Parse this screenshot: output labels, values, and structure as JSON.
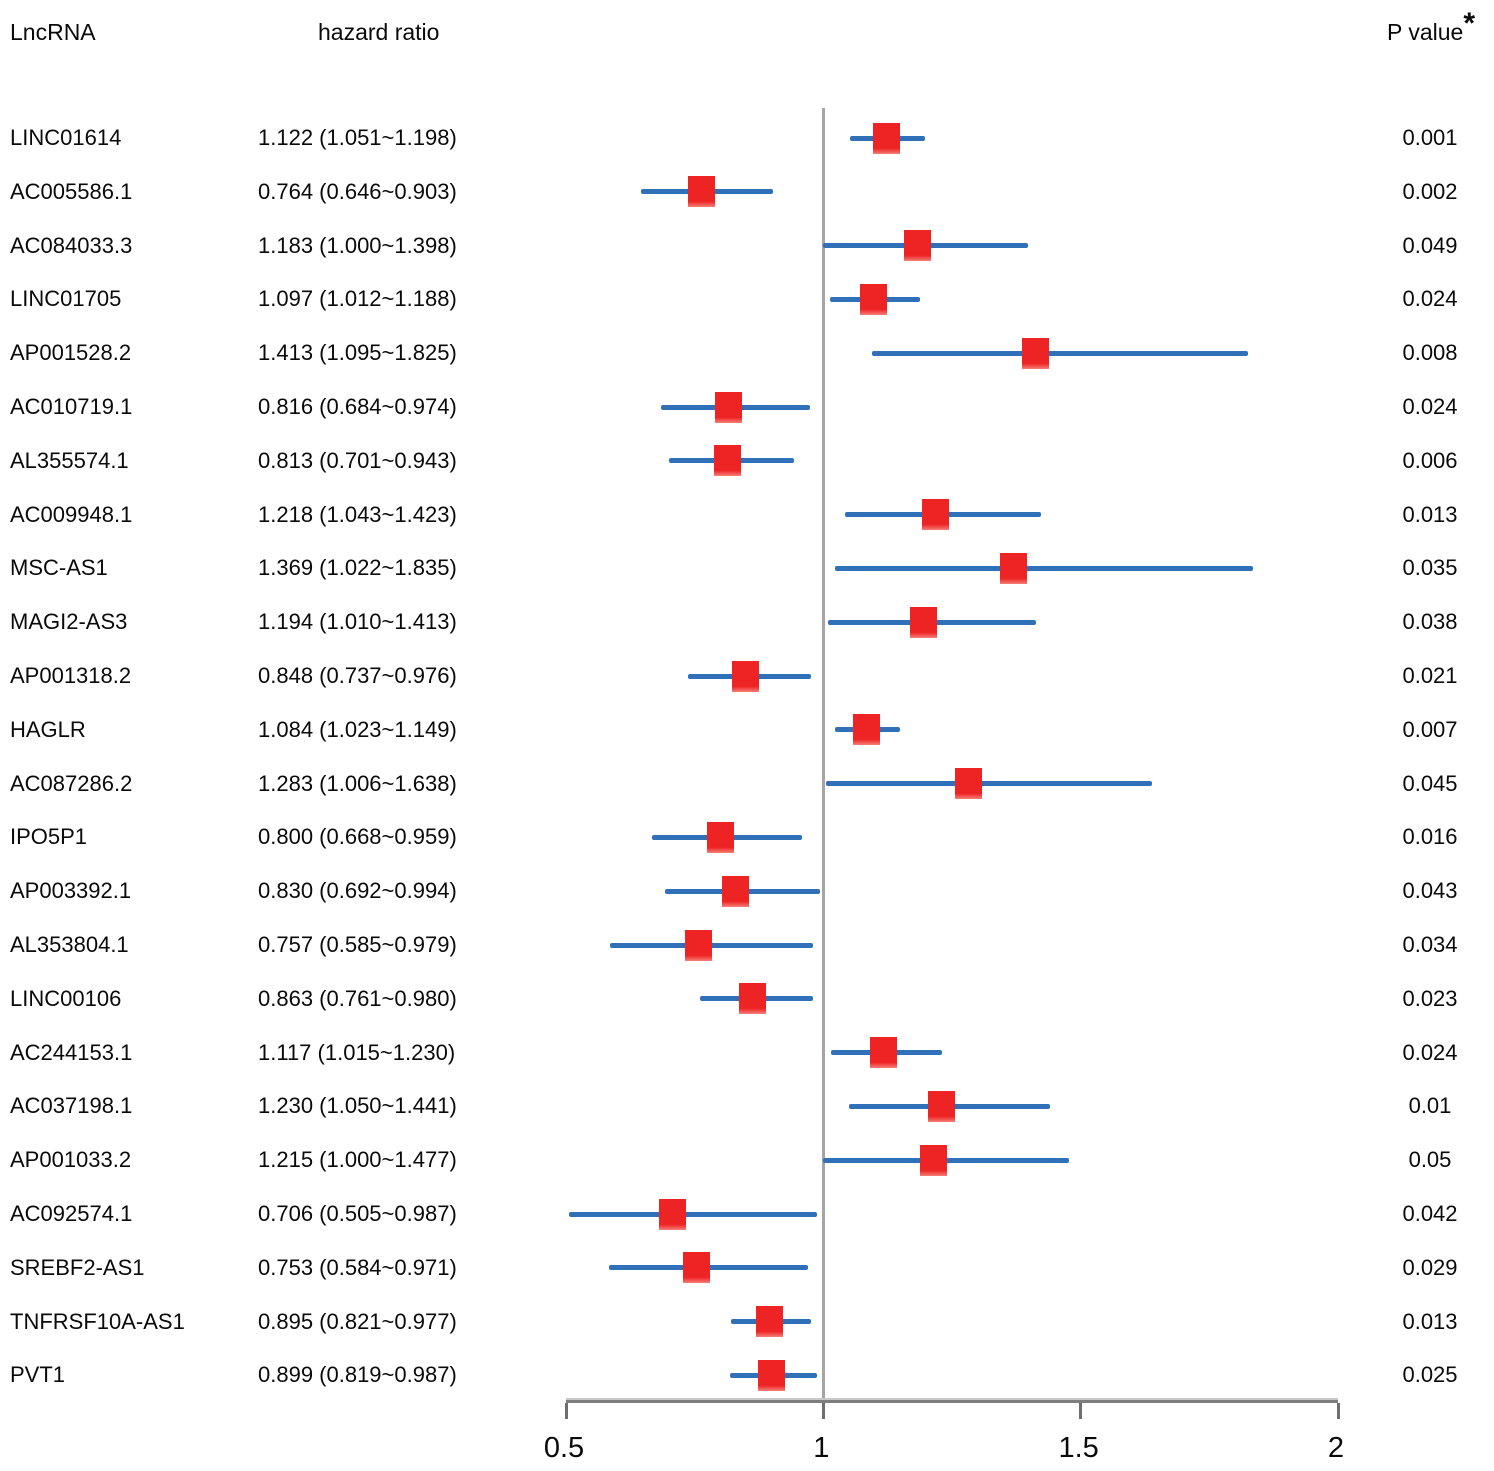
{
  "header": {
    "lncrna": "LncRNA",
    "hazard_ratio": "hazard ratio",
    "p_value": "P value",
    "p_superscript": "*"
  },
  "colors": {
    "marker_red": "#ee2323",
    "marker_red_light": "#f58079",
    "ci_blue": "#3070b8",
    "ref_line_gray": "#a5a5a5",
    "axis_gray_light": "#c9c9c9",
    "axis_gray_dark": "#7e7e7e",
    "tick_gray": "#6f6f6f",
    "text_black": "#0a0a0a"
  },
  "chart_data": {
    "type": "scatter",
    "subtype": "forest-plot",
    "columns": [
      "LncRNA",
      "hazard ratio",
      "P value"
    ],
    "x_axis": {
      "range": [
        0.5,
        2
      ],
      "ticks": [
        0.5,
        1,
        1.5,
        2
      ],
      "tick_labels": [
        "0.5",
        "1",
        "1.5",
        "2"
      ],
      "reference_line": 1,
      "grid": false
    },
    "rows": [
      {
        "lncrna": "LINC01614",
        "hr": 1.122,
        "ci_low": 1.051,
        "ci_high": 1.198,
        "hr_text": "1.122 (1.051~1.198)",
        "p_value": "0.001"
      },
      {
        "lncrna": "AC005586.1",
        "hr": 0.764,
        "ci_low": 0.646,
        "ci_high": 0.903,
        "hr_text": "0.764 (0.646~0.903)",
        "p_value": "0.002"
      },
      {
        "lncrna": "AC084033.3",
        "hr": 1.183,
        "ci_low": 1.0,
        "ci_high": 1.398,
        "hr_text": "1.183 (1.000~1.398)",
        "p_value": "0.049"
      },
      {
        "lncrna": "LINC01705",
        "hr": 1.097,
        "ci_low": 1.012,
        "ci_high": 1.188,
        "hr_text": "1.097 (1.012~1.188)",
        "p_value": "0.024"
      },
      {
        "lncrna": "AP001528.2",
        "hr": 1.413,
        "ci_low": 1.095,
        "ci_high": 1.825,
        "hr_text": "1.413 (1.095~1.825)",
        "p_value": "0.008"
      },
      {
        "lncrna": "AC010719.1",
        "hr": 0.816,
        "ci_low": 0.684,
        "ci_high": 0.974,
        "hr_text": "0.816 (0.684~0.974)",
        "p_value": "0.024"
      },
      {
        "lncrna": "AL355574.1",
        "hr": 0.813,
        "ci_low": 0.701,
        "ci_high": 0.943,
        "hr_text": "0.813 (0.701~0.943)",
        "p_value": "0.006"
      },
      {
        "lncrna": "AC009948.1",
        "hr": 1.218,
        "ci_low": 1.043,
        "ci_high": 1.423,
        "hr_text": "1.218 (1.043~1.423)",
        "p_value": "0.013"
      },
      {
        "lncrna": "MSC-AS1",
        "hr": 1.369,
        "ci_low": 1.022,
        "ci_high": 1.835,
        "hr_text": "1.369 (1.022~1.835)",
        "p_value": "0.035"
      },
      {
        "lncrna": "MAGI2-AS3",
        "hr": 1.194,
        "ci_low": 1.01,
        "ci_high": 1.413,
        "hr_text": "1.194 (1.010~1.413)",
        "p_value": "0.038"
      },
      {
        "lncrna": "AP001318.2",
        "hr": 0.848,
        "ci_low": 0.737,
        "ci_high": 0.976,
        "hr_text": "0.848 (0.737~0.976)",
        "p_value": "0.021"
      },
      {
        "lncrna": "HAGLR",
        "hr": 1.084,
        "ci_low": 1.023,
        "ci_high": 1.149,
        "hr_text": "1.084 (1.023~1.149)",
        "p_value": "0.007"
      },
      {
        "lncrna": "AC087286.2",
        "hr": 1.283,
        "ci_low": 1.006,
        "ci_high": 1.638,
        "hr_text": "1.283 (1.006~1.638)",
        "p_value": "0.045"
      },
      {
        "lncrna": "IPO5P1",
        "hr": 0.8,
        "ci_low": 0.668,
        "ci_high": 0.959,
        "hr_text": "0.800 (0.668~0.959)",
        "p_value": "0.016"
      },
      {
        "lncrna": "AP003392.1",
        "hr": 0.83,
        "ci_low": 0.692,
        "ci_high": 0.994,
        "hr_text": "0.830 (0.692~0.994)",
        "p_value": "0.043"
      },
      {
        "lncrna": "AL353804.1",
        "hr": 0.757,
        "ci_low": 0.585,
        "ci_high": 0.979,
        "hr_text": "0.757 (0.585~0.979)",
        "p_value": "0.034"
      },
      {
        "lncrna": "LINC00106",
        "hr": 0.863,
        "ci_low": 0.761,
        "ci_high": 0.98,
        "hr_text": "0.863 (0.761~0.980)",
        "p_value": "0.023"
      },
      {
        "lncrna": "AC244153.1",
        "hr": 1.117,
        "ci_low": 1.015,
        "ci_high": 1.23,
        "hr_text": "1.117 (1.015~1.230)",
        "p_value": "0.024"
      },
      {
        "lncrna": "AC037198.1",
        "hr": 1.23,
        "ci_low": 1.05,
        "ci_high": 1.441,
        "hr_text": "1.230 (1.050~1.441)",
        "p_value": "0.01"
      },
      {
        "lncrna": "AP001033.2",
        "hr": 1.215,
        "ci_low": 1.0,
        "ci_high": 1.477,
        "hr_text": "1.215 (1.000~1.477)",
        "p_value": "0.05"
      },
      {
        "lncrna": "AC092574.1",
        "hr": 0.706,
        "ci_low": 0.505,
        "ci_high": 0.987,
        "hr_text": "0.706 (0.505~0.987)",
        "p_value": "0.042"
      },
      {
        "lncrna": "SREBF2-AS1",
        "hr": 0.753,
        "ci_low": 0.584,
        "ci_high": 0.971,
        "hr_text": "0.753 (0.584~0.971)",
        "p_value": "0.029"
      },
      {
        "lncrna": "TNFRSF10A-AS1",
        "hr": 0.895,
        "ci_low": 0.821,
        "ci_high": 0.977,
        "hr_text": "0.895 (0.821~0.977)",
        "p_value": "0.013"
      },
      {
        "lncrna": "PVT1",
        "hr": 0.899,
        "ci_low": 0.819,
        "ci_high": 0.987,
        "hr_text": "0.899 (0.819~0.987)",
        "p_value": "0.025"
      }
    ]
  }
}
